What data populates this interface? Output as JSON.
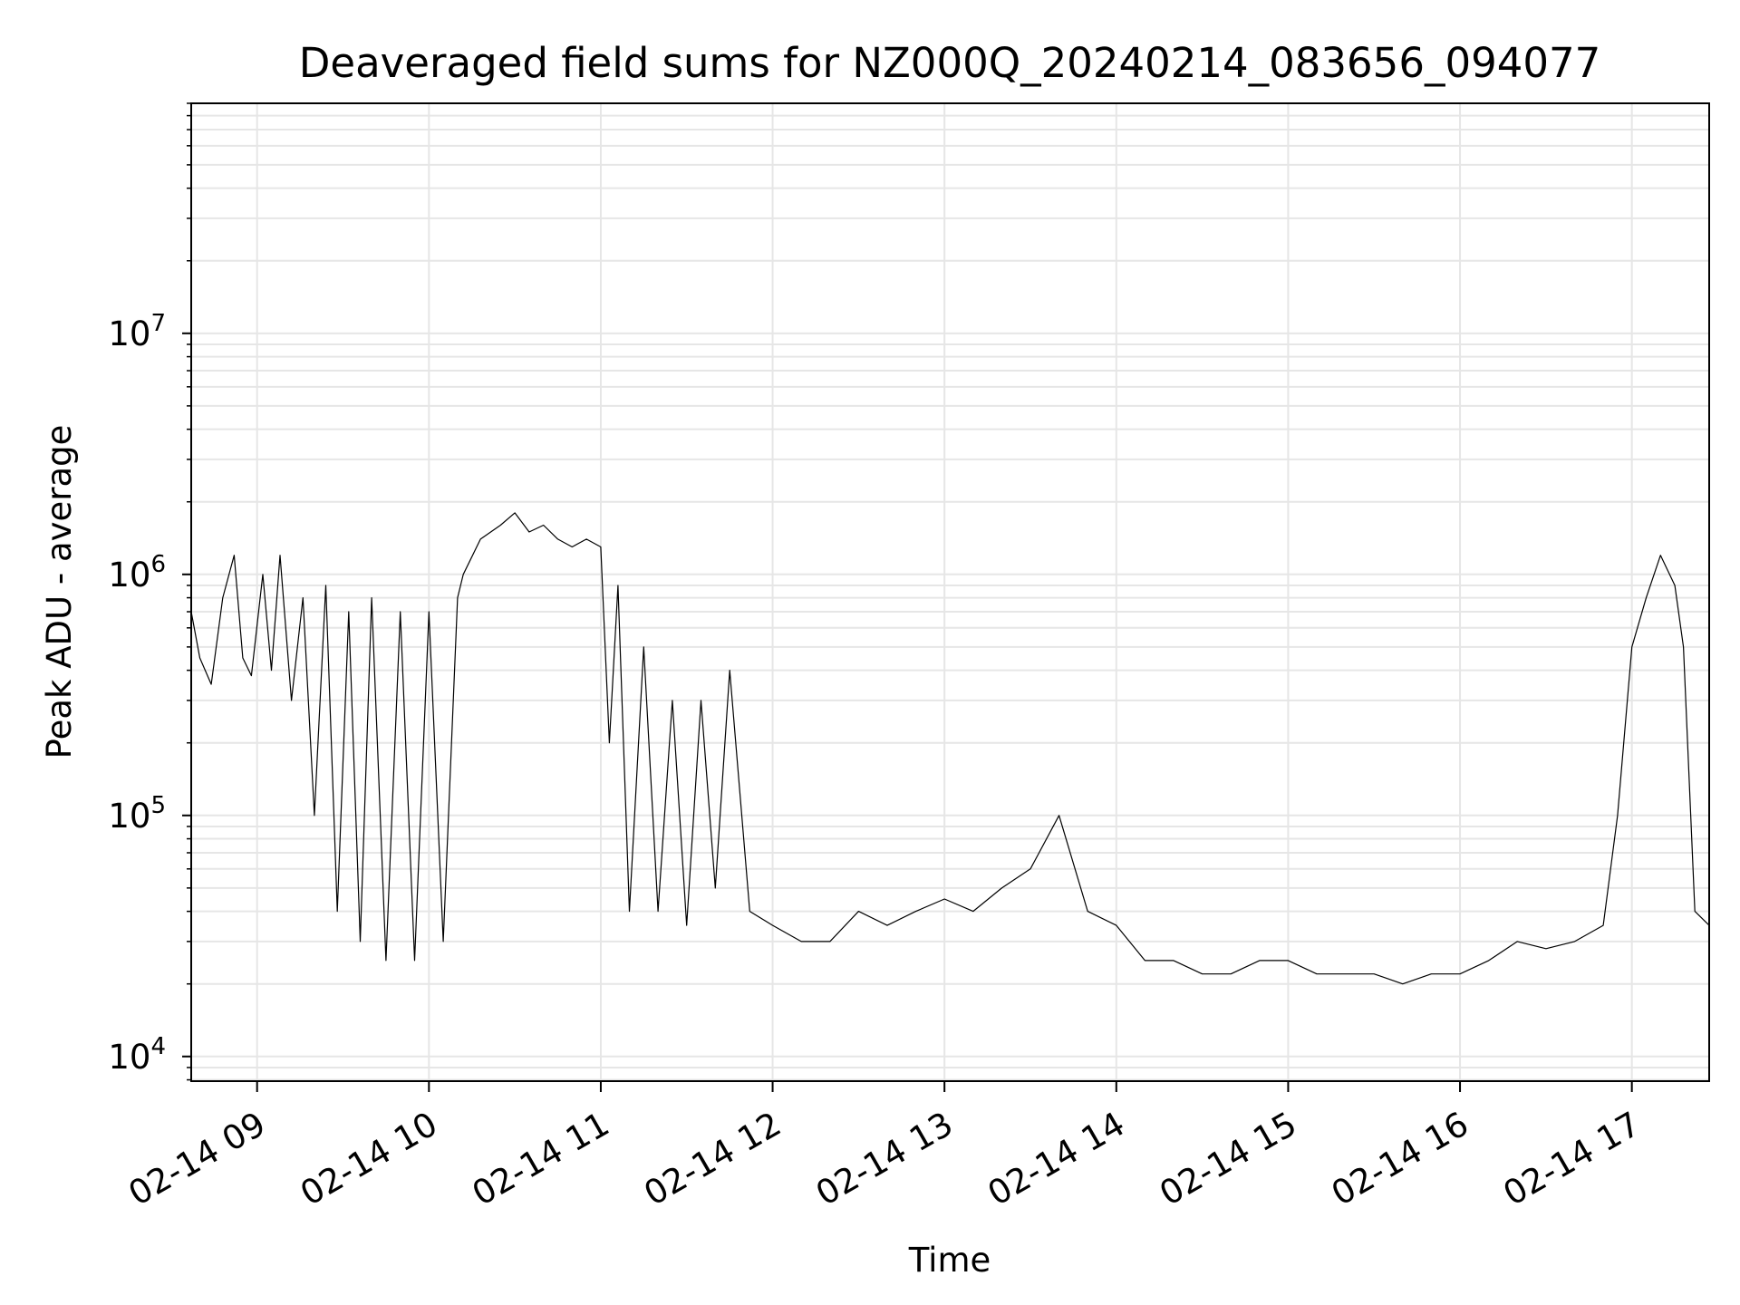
{
  "chart_data": {
    "type": "line",
    "title": "Deaveraged field sums for NZ000Q_20240214_083656_094077",
    "xlabel": "Time",
    "ylabel": "Peak ADU - average",
    "yscale": "log",
    "grid": true,
    "line_color": "#000000",
    "grid_color": "#e6e6e6",
    "xlim": [
      "2024-02-14T08:37",
      "2024-02-14T17:27"
    ],
    "ylim": [
      7900,
      90000000
    ],
    "x_ticks": [
      {
        "value": "2024-02-14T09:00",
        "label": "02-14 09"
      },
      {
        "value": "2024-02-14T10:00",
        "label": "02-14 10"
      },
      {
        "value": "2024-02-14T11:00",
        "label": "02-14 11"
      },
      {
        "value": "2024-02-14T12:00",
        "label": "02-14 12"
      },
      {
        "value": "2024-02-14T13:00",
        "label": "02-14 13"
      },
      {
        "value": "2024-02-14T14:00",
        "label": "02-14 14"
      },
      {
        "value": "2024-02-14T15:00",
        "label": "02-14 15"
      },
      {
        "value": "2024-02-14T16:00",
        "label": "02-14 16"
      },
      {
        "value": "2024-02-14T17:00",
        "label": "02-14 17"
      }
    ],
    "y_ticks": [
      {
        "value": 10000,
        "base": "10",
        "exp": "4"
      },
      {
        "value": 100000,
        "base": "10",
        "exp": "5"
      },
      {
        "value": 1000000,
        "base": "10",
        "exp": "6"
      },
      {
        "value": 10000000,
        "base": "10",
        "exp": "7"
      }
    ],
    "series": [
      {
        "x": [
          "2024-02-14T08:37",
          "2024-02-14T08:40",
          "2024-02-14T08:44",
          "2024-02-14T08:48",
          "2024-02-14T08:52",
          "2024-02-14T08:55",
          "2024-02-14T08:58",
          "2024-02-14T09:02",
          "2024-02-14T09:05",
          "2024-02-14T09:08",
          "2024-02-14T09:12",
          "2024-02-14T09:16",
          "2024-02-14T09:20",
          "2024-02-14T09:24",
          "2024-02-14T09:28",
          "2024-02-14T09:32",
          "2024-02-14T09:36",
          "2024-02-14T09:40",
          "2024-02-14T09:45",
          "2024-02-14T09:50",
          "2024-02-14T09:55",
          "2024-02-14T10:00",
          "2024-02-14T10:05",
          "2024-02-14T10:10",
          "2024-02-14T10:12",
          "2024-02-14T10:18",
          "2024-02-14T10:25",
          "2024-02-14T10:30",
          "2024-02-14T10:35",
          "2024-02-14T10:40",
          "2024-02-14T10:45",
          "2024-02-14T10:50",
          "2024-02-14T10:55",
          "2024-02-14T11:00",
          "2024-02-14T11:03",
          "2024-02-14T11:06",
          "2024-02-14T11:10",
          "2024-02-14T11:15",
          "2024-02-14T11:20",
          "2024-02-14T11:25",
          "2024-02-14T11:30",
          "2024-02-14T11:35",
          "2024-02-14T11:40",
          "2024-02-14T11:45",
          "2024-02-14T11:52",
          "2024-02-14T12:00",
          "2024-02-14T12:10",
          "2024-02-14T12:20",
          "2024-02-14T12:30",
          "2024-02-14T12:40",
          "2024-02-14T12:50",
          "2024-02-14T13:00",
          "2024-02-14T13:10",
          "2024-02-14T13:20",
          "2024-02-14T13:30",
          "2024-02-14T13:40",
          "2024-02-14T13:50",
          "2024-02-14T14:00",
          "2024-02-14T14:10",
          "2024-02-14T14:20",
          "2024-02-14T14:30",
          "2024-02-14T14:40",
          "2024-02-14T14:50",
          "2024-02-14T15:00",
          "2024-02-14T15:10",
          "2024-02-14T15:20",
          "2024-02-14T15:30",
          "2024-02-14T15:40",
          "2024-02-14T15:50",
          "2024-02-14T16:00",
          "2024-02-14T16:10",
          "2024-02-14T16:20",
          "2024-02-14T16:30",
          "2024-02-14T16:40",
          "2024-02-14T16:50",
          "2024-02-14T16:55",
          "2024-02-14T17:00",
          "2024-02-14T17:05",
          "2024-02-14T17:10",
          "2024-02-14T17:15",
          "2024-02-14T17:18",
          "2024-02-14T17:22",
          "2024-02-14T17:27"
        ],
        "y": [
          700000,
          450000,
          350000,
          800000,
          1200000,
          450000,
          380000,
          1000000,
          400000,
          1200000,
          300000,
          800000,
          100000,
          900000,
          40000,
          700000,
          30000,
          800000,
          25000,
          700000,
          25000,
          700000,
          30000,
          800000,
          1000000,
          1400000,
          1600000,
          1800000,
          1500000,
          1600000,
          1400000,
          1300000,
          1400000,
          1300000,
          200000,
          900000,
          40000,
          500000,
          40000,
          300000,
          35000,
          300000,
          50000,
          400000,
          40000,
          35000,
          30000,
          30000,
          40000,
          35000,
          40000,
          45000,
          40000,
          50000,
          60000,
          100000,
          40000,
          35000,
          25000,
          25000,
          22000,
          22000,
          25000,
          25000,
          22000,
          22000,
          22000,
          20000,
          22000,
          22000,
          25000,
          30000,
          28000,
          30000,
          35000,
          100000,
          500000,
          800000,
          1200000,
          900000,
          500000,
          40000,
          35000
        ]
      }
    ]
  }
}
